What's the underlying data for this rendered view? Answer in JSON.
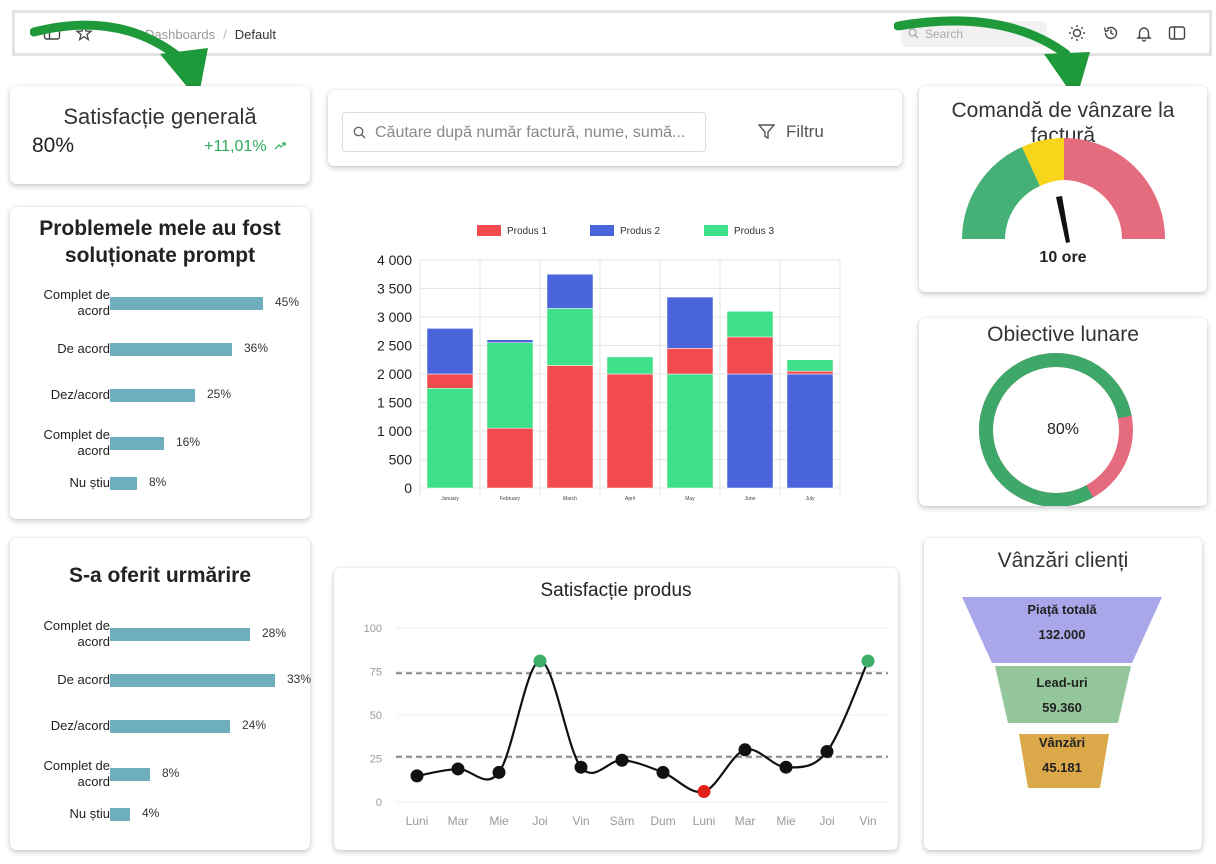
{
  "topbar": {
    "breadcrumb_parent": "Dashboards",
    "breadcrumb_current": "Default",
    "search_placeholder": "Search",
    "icons": [
      "sidebar-icon",
      "star-icon",
      "sun-icon",
      "history-icon",
      "bell-icon",
      "panel-icon"
    ]
  },
  "kpi": {
    "title": "Satisfacție generală",
    "value": "80%",
    "delta": "+11,01%"
  },
  "search": {
    "placeholder": "Căutare după număr factură, nume, sumă...",
    "filter_label": "Filtru"
  },
  "card_resolved": {
    "title_line1": "Problemele mele au fost",
    "title_line2": "soluționate prompt",
    "rows": [
      {
        "label": "Complet de acord",
        "pct_text": "45%",
        "value": 45
      },
      {
        "label": "De acord",
        "pct_text": "36%",
        "value": 36
      },
      {
        "label": "Dez/acord",
        "pct_text": "25%",
        "value": 25
      },
      {
        "label": "Complet de acord",
        "pct_text": "16%",
        "value": 16
      },
      {
        "label": "Nu știu",
        "pct_text": "8%",
        "value": 8
      }
    ]
  },
  "card_followup": {
    "title": "S-a oferit urmărire",
    "rows": [
      {
        "label": "Complet de acord",
        "pct_text": "28%",
        "value": 28
      },
      {
        "label": "De acord",
        "pct_text": "33%",
        "value": 33
      },
      {
        "label": "Dez/acord",
        "pct_text": "24%",
        "value": 24
      },
      {
        "label": "Complet de acord",
        "pct_text": "8%",
        "value": 8
      },
      {
        "label": "Nu știu",
        "pct_text": "4%",
        "value": 4
      }
    ]
  },
  "gauge": {
    "title_line1": "Comandă de vânzare la",
    "title_line2": "factură",
    "value_label": "10 ore"
  },
  "goals": {
    "title": "Obiective lunare",
    "value_label": "80%",
    "progress": 0.8
  },
  "funnel": {
    "title": "Vânzări clienți",
    "stages": [
      {
        "name": "Piață totală",
        "value": "132.000",
        "color": "#a9a6ea"
      },
      {
        "name": "Lead-uri",
        "value": "59.360",
        "color": "#93c79b"
      },
      {
        "name": "Vânzări",
        "value": "45.181",
        "color": "#dba84a"
      }
    ]
  },
  "colors": {
    "accent_green": "#2eaa5c",
    "bar_teal": "#6fafbd",
    "produs1": "#f24b4f",
    "produs2": "#4a65db",
    "produs3": "#3ee089",
    "gauge_green": "#45b176",
    "gauge_yellow": "#f7d51a",
    "gauge_red": "#e56b7e"
  },
  "chart_data": [
    {
      "type": "bar",
      "stacked": true,
      "categories": [
        "January",
        "February",
        "March",
        "April",
        "May",
        "June",
        "July"
      ],
      "series": [
        {
          "name": "Produs 1",
          "values": [
            250,
            1050,
            2150,
            2000,
            450,
            650,
            50
          ]
        },
        {
          "name": "Produs 2",
          "values": [
            800,
            50,
            600,
            0,
            900,
            2000,
            2000
          ]
        },
        {
          "name": "Produs 3",
          "values": [
            1750,
            1500,
            1000,
            300,
            2000,
            450,
            200
          ]
        }
      ],
      "ylim": [
        0,
        4000
      ],
      "yticks": [
        "0",
        "500",
        "1 000",
        "1 500",
        "2 000",
        "2 500",
        "3 000",
        "3 500",
        "4 000"
      ],
      "legend": "top",
      "grid": true
    },
    {
      "type": "line",
      "title": "Satisfacție produs",
      "categories": [
        "Luni",
        "Mar",
        "Mie",
        "Joi",
        "Vin",
        "Sâm",
        "Dum",
        "Luni",
        "Mar",
        "Mie",
        "Joi",
        "Vin"
      ],
      "values": [
        15,
        19,
        17,
        81,
        20,
        24,
        17,
        6,
        30,
        20,
        29,
        81
      ],
      "reference_lines": [
        74,
        26
      ],
      "ylim": [
        0,
        100
      ],
      "yticks": [
        "0",
        "25",
        "50",
        "75",
        "100"
      ],
      "highlight_high": [
        3,
        11
      ],
      "highlight_low": [
        7
      ],
      "grid": true
    }
  ]
}
